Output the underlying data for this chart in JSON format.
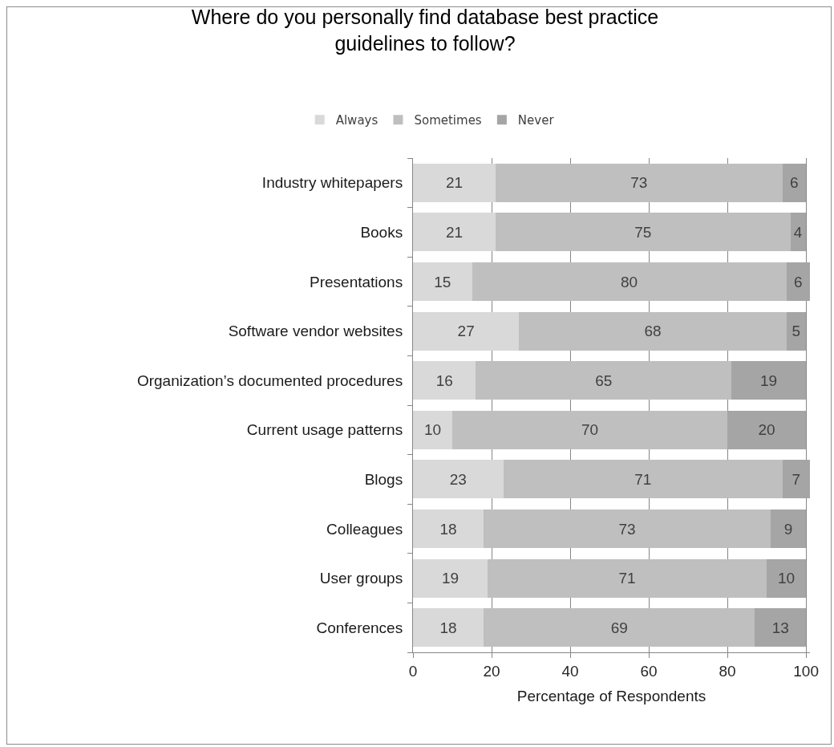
{
  "chart_data": {
    "type": "bar",
    "title": "Where do you personally find database best practice guidelines to follow?",
    "xlabel": "Percentage of Respondents",
    "categories": [
      "Industry whitepapers",
      "Books",
      "Presentations",
      "Software vendor websites",
      "Organization’s documented procedures",
      "Current usage patterns",
      "Blogs",
      "Colleagues",
      "User groups",
      "Conferences"
    ],
    "series": [
      {
        "name": "Always",
        "color": "#d9d9d9",
        "values": [
          21,
          21,
          15,
          27,
          16,
          10,
          23,
          18,
          19,
          18
        ]
      },
      {
        "name": "Sometimes",
        "color": "#bfbfbf",
        "values": [
          73,
          75,
          80,
          68,
          65,
          70,
          71,
          73,
          71,
          69
        ]
      },
      {
        "name": "Never",
        "color": "#a5a5a5",
        "values": [
          6,
          4,
          6,
          5,
          19,
          20,
          7,
          9,
          10,
          13
        ]
      }
    ],
    "orientation": "horizontal",
    "stacked": true,
    "data_labels": true,
    "grid": "x",
    "legend": "top",
    "xlim": [
      0,
      101
    ],
    "xticks": [
      0,
      20,
      40,
      60,
      80,
      100
    ]
  }
}
